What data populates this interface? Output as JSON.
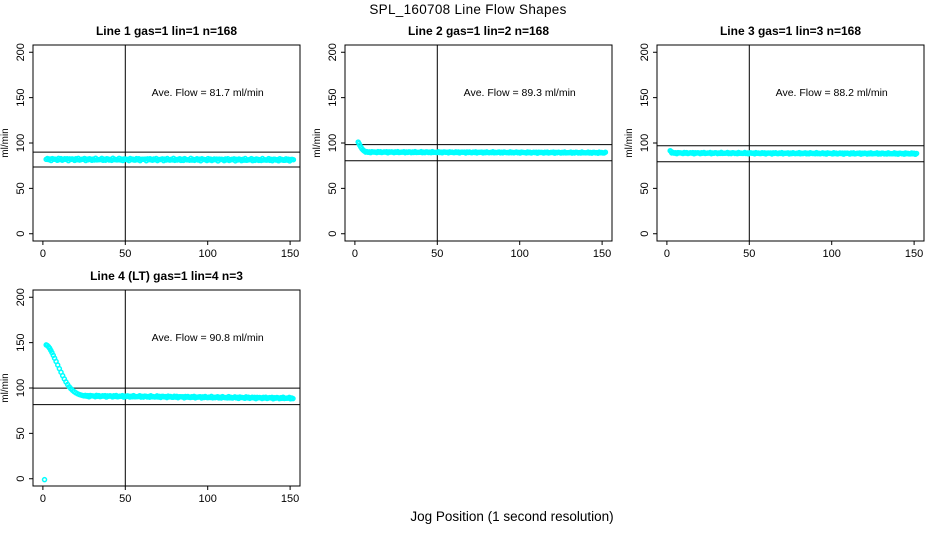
{
  "figure": {
    "title": "SPL_160708  Line Flow Shapes",
    "xlabel": "Jog Position (1 second resolution)",
    "background_color": "#ffffff",
    "marker_color": "#00ffff",
    "line_color": "#000000"
  },
  "chart_data": [
    {
      "type": "scatter",
      "title": "Line 1 gas=1 lin=1 n=168",
      "annotation": "Ave. Flow =  81.7  ml/min",
      "annotation_at": [
        100,
        152
      ],
      "ave_flow": 81.7,
      "n": 168,
      "ylabel": "ml/min",
      "xlim": [
        0,
        150
      ],
      "ylim": [
        0,
        200
      ],
      "x_ticks": [
        0,
        50,
        100,
        150
      ],
      "y_ticks": [
        0,
        50,
        100,
        150,
        200
      ],
      "vline_x": 50,
      "ref_lines": [
        89.9,
        73.5
      ],
      "transient_points": [],
      "steady": {
        "x_start": 2,
        "x_end": 152,
        "y_start": 82,
        "y_end": 81.5,
        "jitter": 1.4
      },
      "marker_color": "#00ffff"
    },
    {
      "type": "scatter",
      "title": "Line 2 gas=1 lin=2 n=168",
      "annotation": "Ave. Flow =  89.3  ml/min",
      "annotation_at": [
        100,
        152
      ],
      "ave_flow": 89.3,
      "n": 168,
      "ylabel": "ml/min",
      "xlim": [
        0,
        150
      ],
      "ylim": [
        0,
        200
      ],
      "x_ticks": [
        0,
        50,
        100,
        150
      ],
      "y_ticks": [
        0,
        50,
        100,
        150,
        200
      ],
      "vline_x": 50,
      "ref_lines": [
        98.2,
        80.4
      ],
      "transient_points": [
        [
          2,
          101
        ],
        [
          2.5,
          99.5
        ],
        [
          3,
          97.5
        ],
        [
          3.6,
          95.5
        ],
        [
          4.2,
          93.8
        ],
        [
          4.9,
          92.4
        ],
        [
          5.6,
          91.3
        ],
        [
          6.4,
          90.6
        ]
      ],
      "steady": {
        "x_start": 6.5,
        "x_end": 152,
        "y_start": 90,
        "y_end": 89.3,
        "jitter": 0.7
      },
      "marker_color": "#00ffff"
    },
    {
      "type": "scatter",
      "title": "Line 3 gas=1 lin=3 n=168",
      "annotation": "Ave. Flow =  88.2  ml/min",
      "annotation_at": [
        100,
        152
      ],
      "ave_flow": 88.2,
      "n": 168,
      "ylabel": "ml/min",
      "xlim": [
        0,
        150
      ],
      "ylim": [
        0,
        200
      ],
      "x_ticks": [
        0,
        50,
        100,
        150
      ],
      "y_ticks": [
        0,
        50,
        100,
        150,
        200
      ],
      "vline_x": 50,
      "ref_lines": [
        97.0,
        79.4
      ],
      "transient_points": [
        [
          2,
          91.5
        ],
        [
          2.6,
          90.5
        ]
      ],
      "steady": {
        "x_start": 3,
        "x_end": 152,
        "y_start": 89,
        "y_end": 88.3,
        "jitter": 0.8
      },
      "marker_color": "#00ffff"
    },
    {
      "type": "scatter",
      "title": "Line 4 (LT) gas=1 lin=4 n=3",
      "annotation": "Ave. Flow =  90.8  ml/min",
      "annotation_at": [
        100,
        152
      ],
      "ave_flow": 90.8,
      "n": 3,
      "ylabel": "ml/min",
      "xlim": [
        0,
        150
      ],
      "ylim": [
        0,
        200
      ],
      "x_ticks": [
        0,
        50,
        100,
        150
      ],
      "y_ticks": [
        0,
        50,
        100,
        150,
        200
      ],
      "vline_x": 50,
      "ref_lines": [
        99.9,
        81.7
      ],
      "transient_points": [
        [
          1,
          -1
        ],
        [
          2,
          147.5
        ],
        [
          2.7,
          146.8
        ],
        [
          3.4,
          145.5
        ],
        [
          4.1,
          143.8
        ],
        [
          4.8,
          141.5
        ],
        [
          5.5,
          139
        ],
        [
          6.3,
          136
        ],
        [
          7.1,
          132.8
        ],
        [
          8,
          129.3
        ],
        [
          9,
          125.3
        ],
        [
          10,
          121.3
        ],
        [
          11,
          117.4
        ],
        [
          12,
          113.6
        ],
        [
          13,
          110
        ],
        [
          14,
          106.7
        ],
        [
          15,
          103.8
        ],
        [
          16,
          101.3
        ],
        [
          17,
          99.2
        ],
        [
          18,
          97.4
        ],
        [
          19,
          95.9
        ],
        [
          20,
          94.7
        ],
        [
          21,
          93.7
        ],
        [
          22,
          92.9
        ],
        [
          23,
          92.3
        ],
        [
          24,
          91.8
        ]
      ],
      "steady": {
        "x_start": 25,
        "x_end": 152,
        "y_start": 91.3,
        "y_end": 88.8,
        "jitter": 1.0
      },
      "marker_color": "#00ffff"
    }
  ]
}
